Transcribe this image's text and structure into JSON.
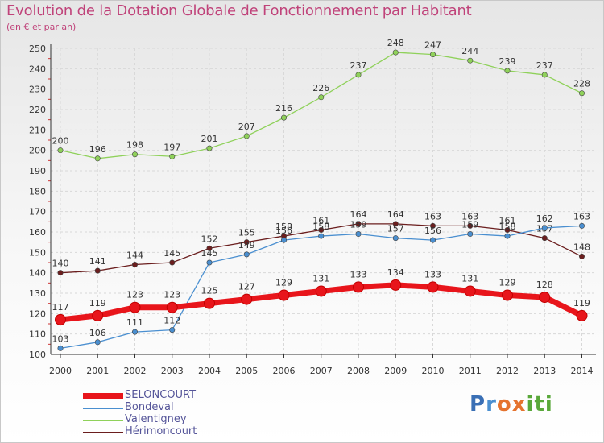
{
  "header": {
    "title": "Evolution de la Dotation Globale de Fonctionnement par Habitant",
    "subtitle": "(en € et par an)"
  },
  "logo": {
    "letters": [
      "P",
      "r",
      "o",
      "x",
      "i",
      "t",
      "i"
    ],
    "colors": [
      "#3a6fb5",
      "#4a8fd0",
      "#e5732e",
      "#e5732e",
      "#59a83a",
      "#59a83a",
      "#59a83a"
    ]
  },
  "chart_data": {
    "type": "line",
    "title": "Evolution de la Dotation Globale de Fonctionnement par Habitant",
    "subtitle": "(en € et par an)",
    "xlabel": "",
    "ylabel": "",
    "x": [
      "2000",
      "2001",
      "2002",
      "2003",
      "2004",
      "2005",
      "2006",
      "2007",
      "2008",
      "2009",
      "2010",
      "2011",
      "2012",
      "2013",
      "2014"
    ],
    "ylim": [
      100,
      250
    ],
    "yticks": [
      100,
      110,
      120,
      130,
      140,
      150,
      160,
      170,
      180,
      190,
      200,
      210,
      220,
      230,
      240,
      250
    ],
    "grid": true,
    "legend": "bottom-left",
    "series": [
      {
        "name": "SELONCOURT",
        "color": "#e8151b",
        "values": [
          117,
          119,
          123,
          123,
          125,
          127,
          129,
          131,
          133,
          134,
          133,
          131,
          129,
          128,
          119
        ]
      },
      {
        "name": "Bondeval",
        "color": "#4a8fd0",
        "values": [
          103,
          106,
          111,
          112,
          145,
          149,
          156,
          158,
          159,
          157,
          156,
          159,
          158,
          162,
          163
        ]
      },
      {
        "name": "Valentigney",
        "color": "#8fd15a",
        "values": [
          200,
          196,
          198,
          197,
          201,
          207,
          216,
          226,
          237,
          248,
          247,
          244,
          239,
          237,
          228
        ]
      },
      {
        "name": "Hérimoncourt",
        "color": "#6b1e1e",
        "values": [
          140,
          141,
          144,
          145,
          152,
          155,
          158,
          161,
          164,
          164,
          163,
          163,
          161,
          157,
          148
        ]
      }
    ]
  }
}
